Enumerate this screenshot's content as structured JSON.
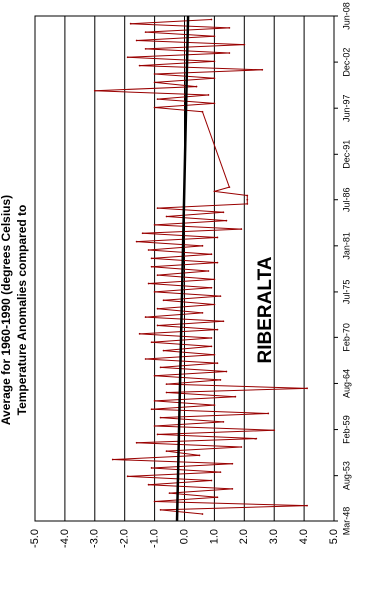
{
  "chart_data": {
    "type": "line",
    "title": "RIBERALTA",
    "ylabel_lines": [
      "Temperature Anomalies compared to",
      "Average for 1960-1990 (degrees Celsius)"
    ],
    "ylim": [
      -5,
      5
    ],
    "y_ticks": [
      5,
      4,
      3,
      2,
      1,
      0,
      -1,
      -2,
      -3,
      -4,
      -5
    ],
    "y_tick_labels": [
      "5.0",
      "4.0",
      "3.0",
      "2.0",
      "1.0",
      "0.0",
      "-1.0",
      "-2.0",
      "-3.0",
      "-4.0",
      "-5.0"
    ],
    "x_tick_labels": [
      "Mar-48",
      "Aug-53",
      "Feb-59",
      "Aug-64",
      "Feb-70",
      "Jul-75",
      "Jan-81",
      "Jul-86",
      "Dec-91",
      "Jun-97",
      "Dec-02",
      "Jun-08"
    ],
    "x_ticks": [
      1948.17,
      1953.58,
      1959.08,
      1964.58,
      1970.08,
      1975.5,
      1981.0,
      1986.5,
      1991.92,
      1997.42,
      2002.92,
      2008.42
    ],
    "xlim": [
      1948.17,
      2008.42
    ],
    "grid": "horizontal",
    "orientation": "rotated-90",
    "series": [
      {
        "color": "#990000",
        "x": [
          1949.0,
          1949.5,
          1950.0,
          1950.5,
          1951.0,
          1951.5,
          1952.0,
          1952.5,
          1953.0,
          1953.5,
          1954.0,
          1954.5,
          1955.0,
          1955.5,
          1956.0,
          1956.5,
          1957.0,
          1957.5,
          1958.0,
          1958.5,
          1959.0,
          1959.5,
          1960.0,
          1960.5,
          1961.0,
          1961.5,
          1962.0,
          1962.5,
          1963.0,
          1963.5,
          1964.0,
          1964.5,
          1965.0,
          1965.5,
          1966.0,
          1966.5,
          1967.0,
          1967.5,
          1968.0,
          1968.5,
          1969.0,
          1969.5,
          1970.0,
          1970.5,
          1971.0,
          1971.5,
          1972.0,
          1972.5,
          1973.0,
          1973.5,
          1974.0,
          1974.5,
          1975.0,
          1975.5,
          1976.0,
          1976.5,
          1977.0,
          1977.5,
          1978.0,
          1978.5,
          1979.0,
          1979.5,
          1980.0,
          1980.5,
          1981.0,
          1981.5,
          1982.0,
          1982.5,
          1983.0,
          1983.5,
          1984.0,
          1984.5,
          1985.0,
          1985.5,
          1986.0,
          1986.5,
          1987.0,
          1987.5,
          1988.0,
          1997.0,
          1997.5,
          1998.0,
          1998.5,
          1999.0,
          1999.5,
          2000.0,
          2000.5,
          2001.0,
          2001.5,
          2002.0,
          2002.5,
          2003.0,
          2003.5,
          2004.0,
          2004.5,
          2005.0,
          2005.5,
          2006.0,
          2006.5,
          2007.0,
          2007.5,
          2008.0
        ],
        "values": [
          0.6,
          -0.8,
          4.1,
          -1.0,
          1.1,
          -0.5,
          1.6,
          -1.2,
          0.9,
          -1.9,
          1.2,
          -1.1,
          1.6,
          -2.4,
          0.5,
          -0.6,
          1.9,
          -1.6,
          2.4,
          -0.9,
          3.0,
          -1.0,
          1.3,
          -0.8,
          2.8,
          -1.1,
          1.0,
          -1.0,
          1.7,
          -0.6,
          4.1,
          -0.6,
          1.2,
          -1.0,
          1.4,
          -0.8,
          1.1,
          -1.3,
          1.0,
          -0.7,
          0.9,
          -1.1,
          0.9,
          -1.5,
          1.1,
          -0.9,
          1.3,
          -1.3,
          0.6,
          -0.9,
          1.0,
          -0.7,
          1.2,
          -1.0,
          0.9,
          -1.2,
          1.0,
          -0.9,
          0.8,
          -1.1,
          1.1,
          -1.1,
          0.9,
          -1.2,
          0.6,
          -1.6,
          1.1,
          -1.4,
          1.9,
          -1.0,
          1.4,
          -0.6,
          1.3,
          -0.9,
          2.1,
          2.1,
          2.1,
          1.0,
          1.5,
          0.6,
          -1.0,
          1.0,
          -0.9,
          0.8,
          -3.0,
          0.4,
          -1.0,
          1.0,
          -1.0,
          2.6,
          -1.5,
          1.0,
          -1.9,
          1.5,
          -1.3,
          2.0,
          -1.6,
          1.0,
          -1.3,
          1.5,
          -1.8,
          0.9
        ]
      }
    ],
    "trend": {
      "color": "#000000",
      "x": [
        1948.17,
        2008.42
      ],
      "values": [
        -0.25,
        0.12
      ]
    }
  }
}
